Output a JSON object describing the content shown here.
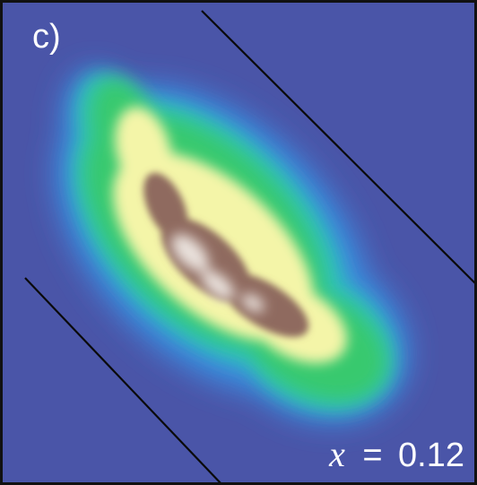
{
  "chart_data": {
    "type": "heatmap",
    "panel_label": "c)",
    "parameter": {
      "symbol": "x",
      "operator": "=",
      "value": "0.12"
    },
    "title": "",
    "xlabel": "",
    "ylabel": "",
    "grid": false,
    "colormap": [
      "#4a55a8",
      "#3b8ce0",
      "#2ec3b8",
      "#38c96e",
      "#f4f5a8",
      "#8f6a5e",
      "#e9e1dc"
    ],
    "background_color": "#4a55a8",
    "frame_color": "#111111",
    "boundary_color": "#0a0a0a"
  }
}
